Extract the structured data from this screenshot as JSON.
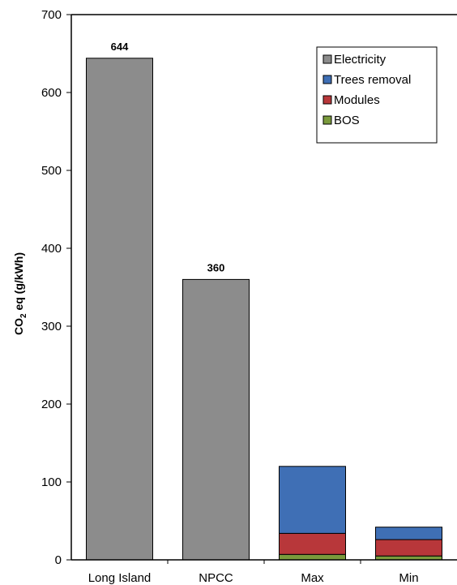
{
  "chart_data": {
    "type": "bar",
    "stacked": true,
    "categories": [
      "Long Island",
      "NPCC",
      "Max",
      "Min"
    ],
    "series": [
      {
        "name": "BOS",
        "color": "#7a9a3c",
        "values": [
          0,
          0,
          7,
          5
        ]
      },
      {
        "name": "Modules",
        "color": "#b8373a",
        "values": [
          0,
          0,
          27,
          21
        ]
      },
      {
        "name": "Trees removal",
        "color": "#3f6fb5",
        "values": [
          0,
          0,
          86,
          16
        ]
      },
      {
        "name": "Electricity",
        "color": "#8c8c8c",
        "values": [
          644,
          360,
          0,
          0
        ]
      }
    ],
    "legend_order": [
      "Electricity",
      "Trees removal",
      "Modules",
      "BOS"
    ],
    "data_labels": [
      "644",
      "360",
      "",
      ""
    ],
    "ylabel_main": "CO",
    "ylabel_sub": "2",
    "ylabel_rest": " eq (g/kWh)",
    "xlabel": "",
    "ylim": [
      0,
      700
    ],
    "yticks": [
      0,
      100,
      200,
      300,
      400,
      500,
      600,
      700
    ],
    "grid": false,
    "legend_position": "top-right"
  }
}
